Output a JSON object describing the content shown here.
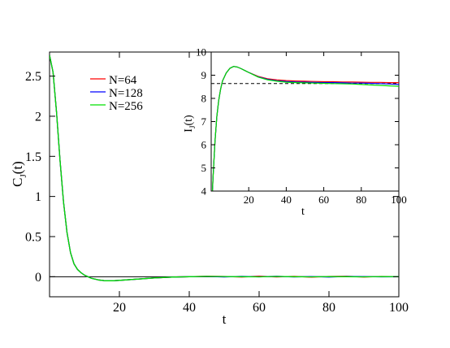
{
  "chart_data": [
    {
      "type": "line",
      "xlabel": "t",
      "ylabel": "C",
      "ylabel_sub": "J",
      "ylabel_suffix": "(t)",
      "xlim": [
        0,
        100
      ],
      "ylim": [
        -0.25,
        2.8
      ],
      "xticks": [
        20,
        40,
        60,
        80,
        100
      ],
      "xtick_labels": [
        "20",
        "40",
        "60",
        "80",
        "100"
      ],
      "yticks": [
        0,
        0.5,
        1,
        1.5,
        2,
        2.5
      ],
      "ytick_labels": [
        "0",
        "0.5",
        "1",
        "1.5",
        "2",
        "2.5"
      ],
      "hline": 0,
      "legend": "top-left",
      "series": [
        {
          "name": "N=64",
          "color": "#ff0000",
          "x": [
            0,
            1,
            2,
            3,
            4,
            5,
            6,
            7,
            8,
            9,
            10,
            12,
            14,
            16,
            18,
            20,
            25,
            30,
            35,
            40,
            45,
            50,
            55,
            60,
            65,
            70,
            75,
            80,
            85,
            90,
            95,
            100
          ],
          "y": [
            2.76,
            2.55,
            2.05,
            1.45,
            0.93,
            0.55,
            0.3,
            0.16,
            0.09,
            0.05,
            0.02,
            -0.02,
            -0.04,
            -0.05,
            -0.05,
            -0.045,
            -0.03,
            -0.015,
            -0.005,
            0.0,
            0.005,
            0.003,
            -0.004,
            0.006,
            -0.003,
            0.004,
            -0.006,
            0.003,
            0.005,
            -0.004,
            0.003,
            0.0
          ]
        },
        {
          "name": "N=128",
          "color": "#0000ff",
          "x": [
            0,
            1,
            2,
            3,
            4,
            5,
            6,
            7,
            8,
            9,
            10,
            12,
            14,
            16,
            18,
            20,
            25,
            30,
            35,
            40,
            45,
            50,
            55,
            60,
            65,
            70,
            75,
            80,
            85,
            90,
            95,
            100
          ],
          "y": [
            2.76,
            2.55,
            2.05,
            1.45,
            0.93,
            0.55,
            0.3,
            0.16,
            0.09,
            0.05,
            0.02,
            -0.02,
            -0.04,
            -0.05,
            -0.05,
            -0.045,
            -0.03,
            -0.015,
            -0.005,
            0.0,
            0.003,
            -0.003,
            0.004,
            -0.002,
            0.005,
            -0.003,
            0.002,
            -0.004,
            0.003,
            0.002,
            -0.002,
            0.0
          ]
        },
        {
          "name": "N=256",
          "color": "#00e000",
          "x": [
            0,
            1,
            2,
            3,
            4,
            5,
            6,
            7,
            8,
            9,
            10,
            12,
            14,
            16,
            18,
            20,
            25,
            30,
            35,
            40,
            45,
            50,
            55,
            60,
            65,
            70,
            75,
            80,
            85,
            90,
            95,
            100
          ],
          "y": [
            2.76,
            2.55,
            2.05,
            1.45,
            0.93,
            0.55,
            0.3,
            0.16,
            0.09,
            0.05,
            0.02,
            -0.02,
            -0.04,
            -0.05,
            -0.05,
            -0.045,
            -0.03,
            -0.015,
            -0.005,
            0.0,
            0.004,
            0.002,
            0.0,
            -0.002,
            0.003,
            0.0,
            -0.002,
            0.002,
            0.0,
            -0.002,
            0.002,
            0.0
          ]
        }
      ]
    },
    {
      "type": "line",
      "xlabel": "t",
      "ylabel": "I",
      "ylabel_sub": "J",
      "ylabel_suffix": "(t)",
      "xlim": [
        0,
        100
      ],
      "ylim": [
        4,
        10
      ],
      "xticks": [
        20,
        40,
        60,
        80,
        100
      ],
      "xtick_labels": [
        "20",
        "40",
        "60",
        "80",
        "100"
      ],
      "yticks": [
        4,
        5,
        6,
        7,
        8,
        9,
        10
      ],
      "ytick_labels": [
        "4",
        "5",
        "6",
        "7",
        "8",
        "9",
        "10"
      ],
      "hline": 8.64,
      "hline_style": "dashed",
      "series": [
        {
          "name": "N=64",
          "color": "#ff0000",
          "x": [
            0,
            1,
            2,
            3,
            4,
            5,
            6,
            8,
            10,
            12,
            14,
            16,
            18,
            20,
            25,
            30,
            35,
            40,
            45,
            50,
            55,
            60,
            65,
            70,
            75,
            80,
            85,
            90,
            95,
            100
          ],
          "y": [
            2.8,
            4.6,
            6.1,
            7.2,
            7.9,
            8.4,
            8.75,
            9.1,
            9.3,
            9.38,
            9.35,
            9.28,
            9.2,
            9.12,
            8.95,
            8.85,
            8.8,
            8.77,
            8.75,
            8.74,
            8.73,
            8.72,
            8.72,
            8.71,
            8.71,
            8.7,
            8.69,
            8.69,
            8.68,
            8.68
          ]
        },
        {
          "name": "N=128",
          "color": "#0000ff",
          "x": [
            0,
            1,
            2,
            3,
            4,
            5,
            6,
            8,
            10,
            12,
            14,
            16,
            18,
            20,
            25,
            30,
            35,
            40,
            45,
            50,
            55,
            60,
            65,
            70,
            75,
            80,
            85,
            90,
            95,
            100
          ],
          "y": [
            2.8,
            4.6,
            6.1,
            7.2,
            7.9,
            8.4,
            8.75,
            9.1,
            9.3,
            9.38,
            9.35,
            9.28,
            9.2,
            9.12,
            8.93,
            8.82,
            8.76,
            8.73,
            8.71,
            8.7,
            8.69,
            8.68,
            8.68,
            8.67,
            8.66,
            8.66,
            8.65,
            8.64,
            8.62,
            8.6
          ]
        },
        {
          "name": "N=256",
          "color": "#00e000",
          "x": [
            0,
            1,
            2,
            3,
            4,
            5,
            6,
            8,
            10,
            12,
            14,
            16,
            18,
            20,
            25,
            30,
            35,
            40,
            45,
            50,
            55,
            60,
            65,
            70,
            75,
            80,
            85,
            90,
            95,
            100
          ],
          "y": [
            2.8,
            4.6,
            6.1,
            7.2,
            7.9,
            8.4,
            8.75,
            9.1,
            9.3,
            9.38,
            9.35,
            9.28,
            9.2,
            9.12,
            8.92,
            8.8,
            8.74,
            8.7,
            8.68,
            8.67,
            8.66,
            8.65,
            8.64,
            8.63,
            8.62,
            8.6,
            8.58,
            8.56,
            8.54,
            8.52
          ]
        }
      ]
    }
  ]
}
